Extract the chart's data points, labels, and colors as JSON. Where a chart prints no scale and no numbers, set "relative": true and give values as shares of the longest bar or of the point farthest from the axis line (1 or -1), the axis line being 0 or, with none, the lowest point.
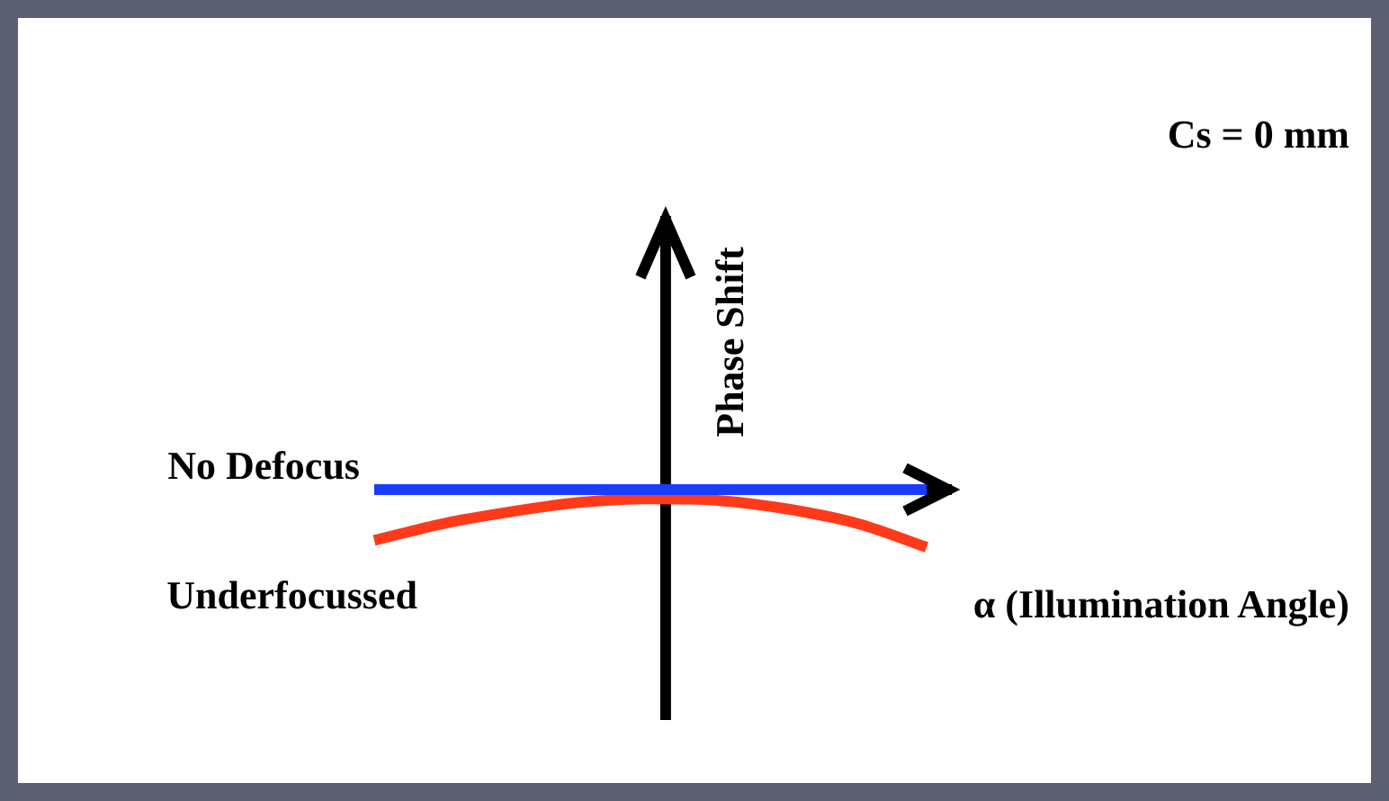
{
  "chart_data": {
    "type": "line",
    "relative": true,
    "xlabel": "α (Illumination Angle)",
    "ylabel": "Phase Shift",
    "annotations": [
      "Cs = 0 mm"
    ],
    "categories": [
      null,
      null,
      null,
      null,
      null,
      null,
      null,
      null,
      null
    ],
    "legend": false,
    "grid": false,
    "marker": "none",
    "line_style": "solid",
    "series": [
      {
        "name": "No Defocus",
        "color": "#1a3cff",
        "values": [
          0,
          0,
          0,
          0,
          0,
          0,
          0,
          0,
          0
        ]
      },
      {
        "name": "Underfocussed",
        "color": "#ff3a1a",
        "values": [
          -0.88,
          -0.59,
          -0.38,
          -0.22,
          -0.16,
          -0.19,
          -0.34,
          -0.59,
          -1
        ]
      }
    ]
  }
}
